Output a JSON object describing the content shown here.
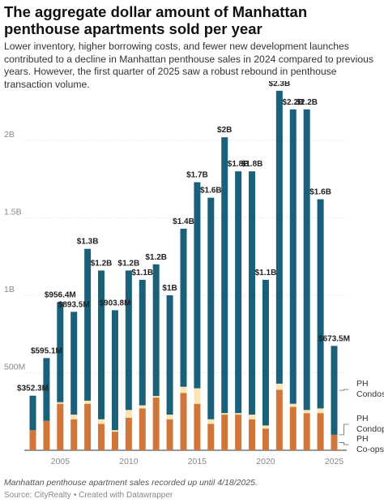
{
  "title": "The aggregate dollar amount of Manhattan penthouse apartments sold per year",
  "subtitle": "Lower inventory, higher borrowing costs, and fewer new development launches contributed to a decline in Manhattan penthouse sales in 2024 compared to previous years. However, the first quarter of 2025 saw a robust rebound in penthouse transaction volume.",
  "note": "Manhattan penthouse apartment sales recorded up until 4/18/2025.",
  "source": "Source: CityRealty",
  "credit": "• Created with Datawrapper",
  "colors": {
    "condos": "#1a6079",
    "condops": "#fbe5b6",
    "coops": "#d0763a",
    "gridline": "#dddddd",
    "tick_text": "#888888"
  },
  "chart_data": {
    "type": "bar",
    "stacked": true,
    "title": "The aggregate dollar amount of Manhattan penthouse apartments sold per year",
    "xlabel": "",
    "ylabel": "",
    "ylim": [
      0,
      2300000000
    ],
    "grid": true,
    "legend_position": "right",
    "y_ticks": [
      {
        "value": 500000000,
        "label": "500M"
      },
      {
        "value": 1000000000,
        "label": "1B"
      },
      {
        "value": 1500000000,
        "label": "1.5B"
      },
      {
        "value": 2000000000,
        "label": "2B"
      }
    ],
    "x_ticks": [
      2005,
      2010,
      2015,
      2020,
      2025
    ],
    "categories": [
      2003,
      2004,
      2005,
      2006,
      2007,
      2008,
      2009,
      2010,
      2011,
      2012,
      2013,
      2014,
      2015,
      2016,
      2017,
      2018,
      2019,
      2020,
      2021,
      2022,
      2023,
      2024,
      2025
    ],
    "series": [
      {
        "name": "PH Co-ops",
        "color": "#d0763a",
        "values": [
          130000000,
          190000000,
          300000000,
          200000000,
          300000000,
          170000000,
          120000000,
          210000000,
          270000000,
          340000000,
          200000000,
          370000000,
          300000000,
          170000000,
          230000000,
          230000000,
          200000000,
          140000000,
          390000000,
          280000000,
          240000000,
          240000000,
          100000000
        ]
      },
      {
        "name": "PH Condops",
        "color": "#fbe5b6",
        "values": [
          0,
          0,
          10000000,
          30000000,
          20000000,
          30000000,
          10000000,
          50000000,
          20000000,
          10000000,
          30000000,
          40000000,
          100000000,
          30000000,
          10000000,
          10000000,
          30000000,
          20000000,
          40000000,
          20000000,
          20000000,
          30000000,
          0
        ]
      },
      {
        "name": "PH Condos",
        "color": "#1a6079",
        "values": [
          222300000,
          405100000,
          646400000,
          663500000,
          980000000,
          960000000,
          773800000,
          900000000,
          810000000,
          850000000,
          770000000,
          1020000000,
          1330000000,
          1430000000,
          1780000000,
          1560000000,
          1570000000,
          940000000,
          1890000000,
          1900000000,
          1940000000,
          1350000000,
          573500000
        ]
      }
    ],
    "totals": [
      352300000,
      595100000,
      956400000,
      893500000,
      1300000000,
      1160000000,
      903800000,
      1160000000,
      1100000000,
      1200000000,
      1000000000,
      1430000000,
      1730000000,
      1630000000,
      2020000000,
      1800000000,
      1800000000,
      1100000000,
      2320000000,
      2200000000,
      2200000000,
      1620000000,
      673500000
    ],
    "value_labels": [
      "$352.3M",
      "$595.1M",
      "$956.4M",
      "$893.5M",
      "$1.3B",
      "$1.2B",
      "$903.8M",
      "$1.2B",
      "$1.1B",
      "$1.2B",
      "$1B",
      "$1.4B",
      "$1.7B",
      "$1.6B",
      "$2B",
      "$1.8B",
      "$1.8B",
      "$1.1B",
      "$2.3B",
      "$2.2B",
      "$2.2B",
      "$1.6B",
      "$673.5M"
    ],
    "legend": [
      {
        "label": "PH Condos",
        "series": 2
      },
      {
        "label": "PH Condops",
        "series": 1
      },
      {
        "label": "PH Co-ops",
        "series": 0
      }
    ]
  }
}
